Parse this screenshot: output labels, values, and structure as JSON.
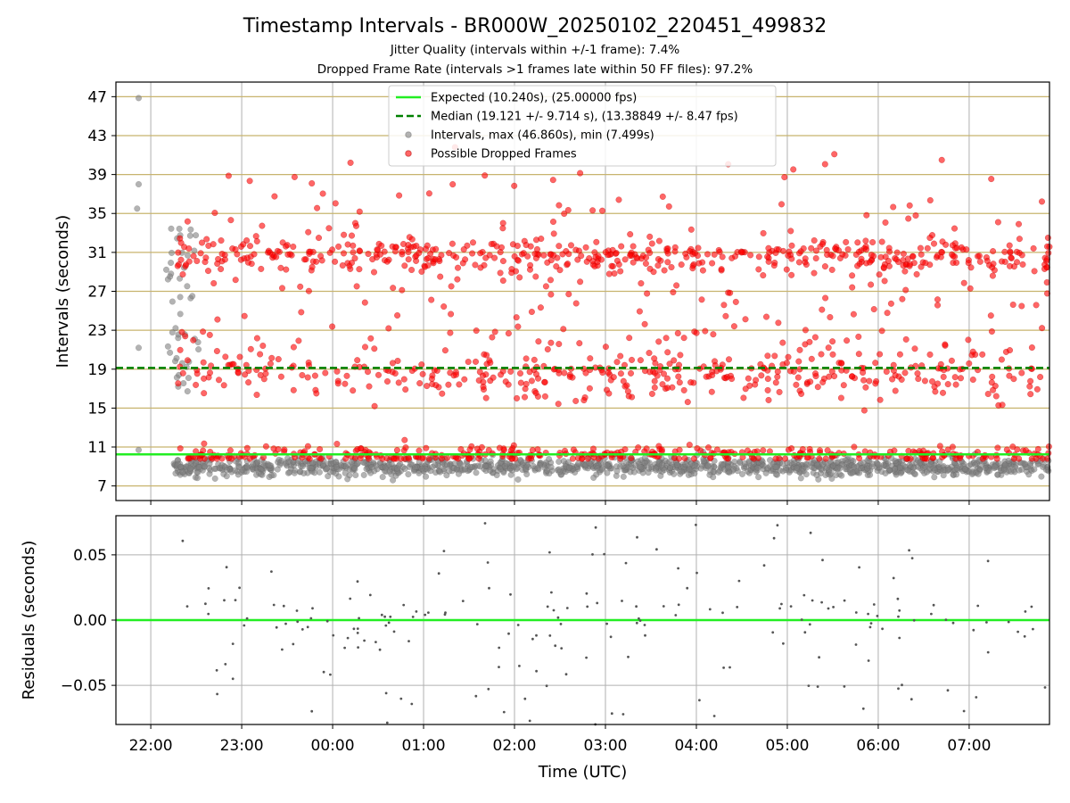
{
  "title": "Timestamp Intervals - BR000W_20250102_220451_499832",
  "subtitle_1": "Jitter Quality (intervals within +/-1 frame): 7.4%",
  "subtitle_2": "Dropped Frame Rate (intervals >1 frames late within 50 FF files): 97.2%",
  "colors": {
    "expected": "#22ee22",
    "median": "#008000",
    "intervals": "#808080",
    "dropped": "#ff0000",
    "hgrid_top": "#c8b46e",
    "grid": "#b0b0b0"
  },
  "chart_data": [
    {
      "type": "scatter",
      "ylabel": "Intervals (seconds)",
      "ylim": [
        5.5,
        48.5
      ],
      "xlim": [
        "21:37",
        "07:53"
      ],
      "yticks": [
        7,
        11,
        15,
        19,
        23,
        27,
        31,
        35,
        39,
        43,
        47
      ],
      "grid": true,
      "legend_placement": "top-center",
      "legend": [
        {
          "key": "expected",
          "label": "Expected (10.240s), (25.00000 fps)"
        },
        {
          "key": "median",
          "label": "Median (19.121 +/- 9.714 s), (13.38849 +/- 8.47 fps)"
        },
        {
          "key": "intervals",
          "label": "Intervals, max (46.860s), min (7.499s)"
        },
        {
          "key": "dropped",
          "label": "Possible Dropped Frames"
        }
      ],
      "expected": 10.24,
      "median": 19.121,
      "intervals_max": 46.86,
      "intervals_min": 7.499,
      "intervals_approx_count": 1200,
      "intervals_range_approx": [
        7.5,
        10.5
      ],
      "dropped_frame_approx_count": 1400,
      "dropped_frame_clusters_approx": [
        {
          "center": 10.2,
          "spread": 0.45,
          "share": 0.27
        },
        {
          "center": 18.3,
          "spread": 1.3,
          "share": 0.23
        },
        {
          "center": 30.6,
          "spread": 0.9,
          "share": 0.32
        },
        {
          "center": 27.5,
          "spread": 4.0,
          "share": 0.1
        },
        {
          "center": 21.0,
          "spread": 2.5,
          "share": 0.05
        },
        {
          "center": 36.0,
          "spread": 2.5,
          "share": 0.03
        }
      ]
    },
    {
      "type": "scatter",
      "ylabel": "Residuals (seconds)",
      "xlabel": "Time (UTC)",
      "ylim": [
        -0.08,
        0.08
      ],
      "xlim": [
        "21:37",
        "07:53"
      ],
      "yticks": [
        0.05,
        0.0,
        -0.05
      ],
      "ytick_labels": [
        "0.05",
        "0.00",
        "−0.05"
      ],
      "xticks": [
        "22:00",
        "23:00",
        "00:00",
        "01:00",
        "02:00",
        "03:00",
        "04:00",
        "05:00",
        "06:00",
        "07:00"
      ],
      "zero_line": 0.0,
      "grid": true,
      "residuals_approx_count": 200,
      "residuals_range_approx": [
        -0.08,
        0.075
      ]
    }
  ]
}
